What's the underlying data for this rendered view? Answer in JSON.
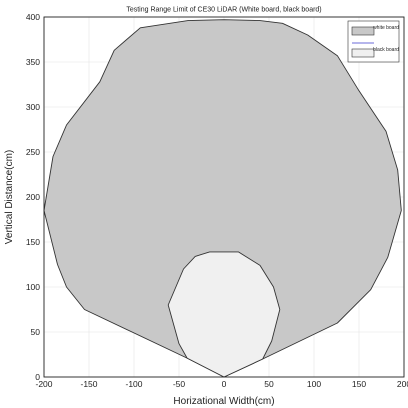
{
  "chart_data": {
    "type": "area",
    "title": "Testing Range Limit of CE30 LiDAR (White board, black board)",
    "xlabel": "Horizational Width(cm)",
    "ylabel": "Vertical Distance(cm)",
    "xlim": [
      -200,
      200
    ],
    "ylim": [
      0,
      400
    ],
    "xticks": [
      -200,
      -150,
      -100,
      -50,
      0,
      50,
      100,
      150,
      200
    ],
    "yticks": [
      0,
      50,
      100,
      150,
      200,
      250,
      300,
      350,
      400
    ],
    "grid": true,
    "legend_position": "top-right",
    "series": [
      {
        "name": "white board",
        "color": "#c8c8c8",
        "points": [
          [
            0,
            0
          ],
          [
            -41,
            21
          ],
          [
            -155,
            75
          ],
          [
            -175,
            100
          ],
          [
            -185,
            125
          ],
          [
            -200,
            185
          ],
          [
            -190,
            245
          ],
          [
            -175,
            280
          ],
          [
            -138,
            328
          ],
          [
            -122,
            363
          ],
          [
            -93,
            388
          ],
          [
            -40,
            396
          ],
          [
            0,
            397
          ],
          [
            40,
            396
          ],
          [
            65,
            393
          ],
          [
            93,
            380
          ],
          [
            126,
            357
          ],
          [
            150,
            318
          ],
          [
            180,
            273
          ],
          [
            193,
            230
          ],
          [
            197,
            185
          ],
          [
            182,
            133
          ],
          [
            163,
            97
          ],
          [
            126,
            60
          ],
          [
            43,
            20
          ],
          [
            0,
            0
          ]
        ]
      },
      {
        "name": "black board",
        "color": "#f0f0f0",
        "points": [
          [
            0,
            0
          ],
          [
            -41,
            21
          ],
          [
            -50,
            37
          ],
          [
            -62,
            80
          ],
          [
            -45,
            120
          ],
          [
            -32,
            134
          ],
          [
            -16,
            139
          ],
          [
            16,
            139
          ],
          [
            40,
            124
          ],
          [
            55,
            100
          ],
          [
            62,
            75
          ],
          [
            53,
            40
          ],
          [
            43,
            20
          ],
          [
            0,
            0
          ]
        ]
      }
    ]
  }
}
